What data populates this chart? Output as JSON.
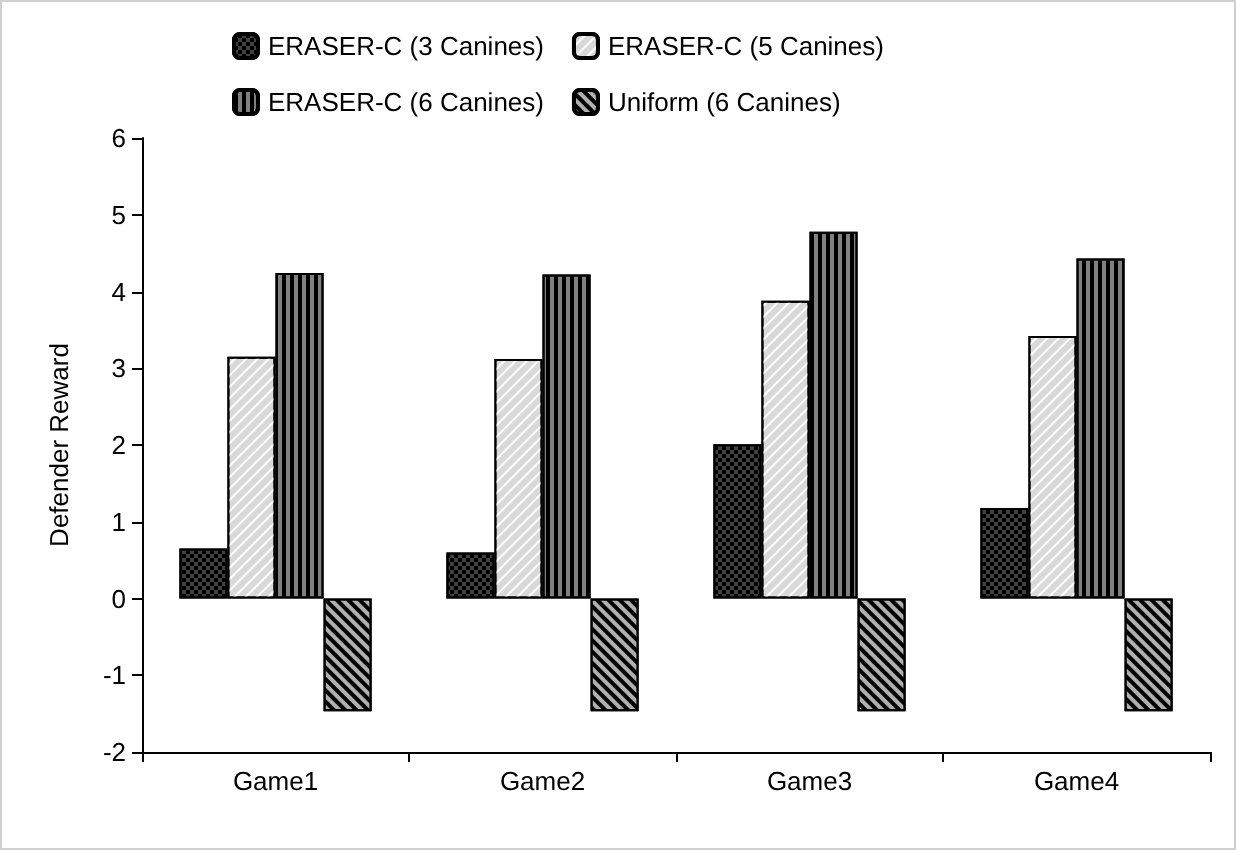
{
  "chart_data": {
    "type": "bar",
    "ylabel": "Defender Reward",
    "categories": [
      "Game1",
      "Game2",
      "Game3",
      "Game4"
    ],
    "series": [
      {
        "name": "ERASER-C (3 Canines)",
        "color": "#404040",
        "values": [
          0.65,
          0.6,
          2.01,
          1.18
        ]
      },
      {
        "name": "ERASER-C (5 Canines)",
        "color": "#d9d9d9",
        "values": [
          3.15,
          3.12,
          3.88,
          3.42
        ]
      },
      {
        "name": "ERASER-C (6 Canines)",
        "color": "#808080",
        "values": [
          4.24,
          4.22,
          4.78,
          4.43
        ]
      },
      {
        "name": "Uniform (6 Canines)",
        "color": "#b0b0b0",
        "values": [
          -1.47,
          -1.47,
          -1.47,
          -1.47
        ]
      }
    ],
    "ylim": [
      -2,
      6
    ],
    "yticks": [
      -2,
      -1,
      0,
      1,
      2,
      3,
      4,
      5,
      6
    ],
    "grid": false,
    "legend": "top"
  }
}
